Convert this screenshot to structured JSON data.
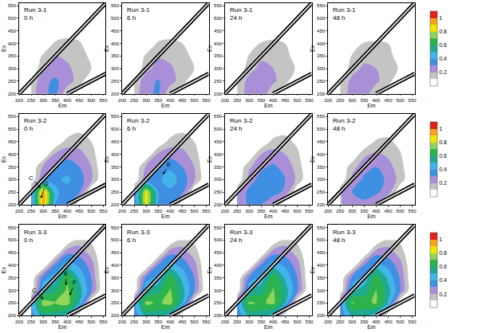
{
  "chart_data": {
    "type": "contour",
    "x_label": "Em",
    "y_label": "Ex",
    "xlim": [
      200,
      560
    ],
    "xticks": [
      200,
      250,
      300,
      350,
      400,
      450,
      500,
      550
    ],
    "ylim": [
      200,
      560
    ],
    "yticks": [
      200,
      250,
      300,
      350,
      400,
      450,
      500,
      550
    ],
    "x": [
      250,
      300,
      350,
      400,
      450,
      500,
      550
    ],
    "y": [
      200,
      250,
      300,
      350,
      400,
      450,
      500
    ],
    "scatter_lines": [
      {
        "x": [
          200,
          560
        ],
        "y": [
          200,
          560
        ]
      },
      {
        "x": [
          400,
          560
        ],
        "y": [
          200,
          280
        ]
      }
    ],
    "colorbar": {
      "zlim": [
        0,
        1.1
      ],
      "levels": {
        "start": 0.1,
        "end": 1.0,
        "size": 0.1
      },
      "ticks": [
        0.2,
        0.4,
        0.6,
        0.8,
        1
      ],
      "colors": [
        "#ffffff",
        "#c4c4c4",
        "#a98fd8",
        "#3f8fe3",
        "#43b4ea",
        "#1fa98d",
        "#2db34e",
        "#90d45a",
        "#f2e600",
        "#f7a21b",
        "#e3221b"
      ]
    },
    "panels": [
      {
        "title": "Run 3-1",
        "subtitle": "0 h",
        "z": [
          [
            0.15,
            0.28,
            0.33,
            0.12,
            0,
            0,
            0
          ],
          [
            0.12,
            0.27,
            0.32,
            0.25,
            0.15,
            0,
            0
          ],
          [
            0,
            0.18,
            0.25,
            0.22,
            0.16,
            0.1,
            0
          ],
          [
            0,
            0.12,
            0.2,
            0.18,
            0.14,
            0.08,
            0
          ],
          [
            0,
            0,
            0.12,
            0.13,
            0.11,
            0.05,
            0
          ],
          [
            0,
            0,
            0,
            0.06,
            0.06,
            0.03,
            0
          ],
          [
            0,
            0,
            0,
            0,
            0.03,
            0,
            0
          ]
        ],
        "annotations": []
      },
      {
        "title": "Run 3-1",
        "subtitle": "6 h",
        "z": [
          [
            0.15,
            0.27,
            0.32,
            0.12,
            0,
            0,
            0
          ],
          [
            0.12,
            0.26,
            0.31,
            0.24,
            0.15,
            0,
            0
          ],
          [
            0,
            0.17,
            0.24,
            0.22,
            0.15,
            0.1,
            0
          ],
          [
            0,
            0.12,
            0.19,
            0.17,
            0.13,
            0.08,
            0
          ],
          [
            0,
            0,
            0.12,
            0.12,
            0.1,
            0.05,
            0
          ],
          [
            0,
            0,
            0,
            0.06,
            0.06,
            0.03,
            0
          ],
          [
            0,
            0,
            0,
            0,
            0.03,
            0,
            0
          ]
        ],
        "annotations": []
      },
      {
        "title": "Run 3-1",
        "subtitle": "24 h",
        "z": [
          [
            0.14,
            0.24,
            0.27,
            0.11,
            0,
            0,
            0
          ],
          [
            0.11,
            0.24,
            0.27,
            0.22,
            0.14,
            0,
            0
          ],
          [
            0,
            0.16,
            0.23,
            0.2,
            0.14,
            0.09,
            0
          ],
          [
            0,
            0.11,
            0.18,
            0.16,
            0.12,
            0.07,
            0
          ],
          [
            0,
            0,
            0.11,
            0.12,
            0.1,
            0.05,
            0
          ],
          [
            0,
            0,
            0,
            0.05,
            0.05,
            0.03,
            0
          ],
          [
            0,
            0,
            0,
            0,
            0.03,
            0,
            0
          ]
        ],
        "annotations": []
      },
      {
        "title": "Run 3-1",
        "subtitle": "48 h",
        "z": [
          [
            0.14,
            0.24,
            0.26,
            0.11,
            0,
            0,
            0
          ],
          [
            0.11,
            0.23,
            0.26,
            0.22,
            0.14,
            0,
            0
          ],
          [
            0,
            0.16,
            0.22,
            0.2,
            0.14,
            0.09,
            0
          ],
          [
            0,
            0.11,
            0.17,
            0.16,
            0.12,
            0.07,
            0
          ],
          [
            0,
            0,
            0.11,
            0.11,
            0.1,
            0.05,
            0
          ],
          [
            0,
            0,
            0,
            0.05,
            0.05,
            0.03,
            0
          ],
          [
            0,
            0,
            0,
            0,
            0.03,
            0,
            0
          ]
        ],
        "annotations": []
      },
      {
        "title": "Run 3-2",
        "subtitle": "0 h",
        "z": [
          [
            0.3,
            0.95,
            0.4,
            0.3,
            0,
            0,
            0
          ],
          [
            0.3,
            0.95,
            0.42,
            0.36,
            0.32,
            0,
            0
          ],
          [
            0,
            0.32,
            0.38,
            0.42,
            0.35,
            0.22,
            0
          ],
          [
            0,
            0.22,
            0.3,
            0.36,
            0.3,
            0.2,
            0
          ],
          [
            0,
            0,
            0.22,
            0.26,
            0.24,
            0.15,
            0
          ],
          [
            0,
            0,
            0,
            0.15,
            0.15,
            0.1,
            0
          ],
          [
            0,
            0,
            0,
            0,
            0.08,
            0.05,
            0
          ]
        ],
        "annotations": [
          {
            "text": "C",
            "x": 290,
            "y": 265,
            "text_x": 250,
            "text_y": 305
          },
          {
            "text": "D",
            "x": 290,
            "y": 225,
            "text_x": 312,
            "text_y": 285
          }
        ]
      },
      {
        "title": "Run 3-2",
        "subtitle": "6 h",
        "z": [
          [
            0.28,
            0.85,
            0.38,
            0.3,
            0,
            0,
            0
          ],
          [
            0.28,
            0.85,
            0.4,
            0.38,
            0.34,
            0,
            0
          ],
          [
            0,
            0.3,
            0.38,
            0.45,
            0.36,
            0.22,
            0
          ],
          [
            0,
            0.22,
            0.32,
            0.38,
            0.3,
            0.2,
            0
          ],
          [
            0,
            0,
            0.22,
            0.26,
            0.24,
            0.15,
            0
          ],
          [
            0,
            0,
            0,
            0.15,
            0.15,
            0.1,
            0
          ],
          [
            0,
            0,
            0,
            0,
            0.08,
            0.05,
            0
          ]
        ],
        "annotations": [
          {
            "text": "E",
            "x": 370,
            "y": 320,
            "text_x": 395,
            "text_y": 360
          }
        ]
      },
      {
        "title": "Run 3-2",
        "subtitle": "24 h",
        "z": [
          [
            0.2,
            0.33,
            0.3,
            0.22,
            0,
            0,
            0
          ],
          [
            0.2,
            0.33,
            0.35,
            0.34,
            0.28,
            0,
            0
          ],
          [
            0,
            0.25,
            0.34,
            0.36,
            0.3,
            0.18,
            0
          ],
          [
            0,
            0.18,
            0.28,
            0.32,
            0.26,
            0.16,
            0
          ],
          [
            0,
            0,
            0.2,
            0.24,
            0.2,
            0.12,
            0
          ],
          [
            0,
            0,
            0,
            0.14,
            0.13,
            0.08,
            0
          ],
          [
            0,
            0,
            0,
            0,
            0.07,
            0.04,
            0
          ]
        ],
        "annotations": []
      },
      {
        "title": "Run 3-2",
        "subtitle": "48 h",
        "z": [
          [
            0.18,
            0.3,
            0.28,
            0.2,
            0,
            0,
            0
          ],
          [
            0.18,
            0.3,
            0.33,
            0.32,
            0.25,
            0,
            0
          ],
          [
            0,
            0.23,
            0.32,
            0.34,
            0.28,
            0.16,
            0
          ],
          [
            0,
            0.16,
            0.26,
            0.3,
            0.24,
            0.14,
            0
          ],
          [
            0,
            0,
            0.18,
            0.22,
            0.18,
            0.11,
            0
          ],
          [
            0,
            0,
            0,
            0.12,
            0.12,
            0.07,
            0
          ],
          [
            0,
            0,
            0,
            0,
            0.06,
            0.04,
            0
          ]
        ],
        "annotations": []
      },
      {
        "title": "Run 3-3",
        "subtitle": "0 h",
        "z": [
          [
            0.35,
            0.55,
            0.55,
            0.45,
            0,
            0,
            0
          ],
          [
            0.38,
            0.75,
            0.7,
            0.75,
            0.5,
            0,
            0
          ],
          [
            0,
            0.5,
            0.58,
            0.72,
            0.55,
            0.32,
            0
          ],
          [
            0,
            0.35,
            0.45,
            0.68,
            0.48,
            0.3,
            0
          ],
          [
            0,
            0,
            0.32,
            0.45,
            0.38,
            0.25,
            0
          ],
          [
            0,
            0,
            0,
            0.28,
            0.26,
            0.16,
            0
          ],
          [
            0,
            0,
            0,
            0,
            0.15,
            0.08,
            0
          ]
        ],
        "annotations": [
          {
            "text": "C",
            "x": 300,
            "y": 265,
            "text_x": 262,
            "text_y": 300
          },
          {
            "text": "E",
            "x": 395,
            "y": 320,
            "text_x": 395,
            "text_y": 365
          },
          {
            "text": "F",
            "x": 410,
            "y": 280,
            "text_x": 432,
            "text_y": 330
          }
        ]
      },
      {
        "title": "Run 3-3",
        "subtitle": "6 h",
        "z": [
          [
            0.34,
            0.54,
            0.54,
            0.44,
            0,
            0,
            0
          ],
          [
            0.36,
            0.73,
            0.68,
            0.74,
            0.5,
            0,
            0
          ],
          [
            0,
            0.5,
            0.57,
            0.71,
            0.54,
            0.31,
            0
          ],
          [
            0,
            0.34,
            0.44,
            0.66,
            0.47,
            0.3,
            0
          ],
          [
            0,
            0,
            0.31,
            0.44,
            0.37,
            0.24,
            0
          ],
          [
            0,
            0,
            0,
            0.27,
            0.25,
            0.15,
            0
          ],
          [
            0,
            0,
            0,
            0,
            0.14,
            0.08,
            0
          ]
        ],
        "annotations": []
      },
      {
        "title": "Run 3-3",
        "subtitle": "24 h",
        "z": [
          [
            0.33,
            0.53,
            0.54,
            0.44,
            0,
            0,
            0
          ],
          [
            0.35,
            0.72,
            0.68,
            0.73,
            0.5,
            0,
            0
          ],
          [
            0,
            0.49,
            0.56,
            0.71,
            0.55,
            0.32,
            0
          ],
          [
            0,
            0.33,
            0.44,
            0.67,
            0.48,
            0.3,
            0
          ],
          [
            0,
            0,
            0.31,
            0.45,
            0.38,
            0.25,
            0
          ],
          [
            0,
            0,
            0,
            0.27,
            0.26,
            0.16,
            0
          ],
          [
            0,
            0,
            0,
            0,
            0.15,
            0.08,
            0
          ]
        ],
        "annotations": []
      },
      {
        "title": "Run 3-3",
        "subtitle": "48 h",
        "z": [
          [
            0.32,
            0.52,
            0.53,
            0.43,
            0,
            0,
            0
          ],
          [
            0.34,
            0.71,
            0.66,
            0.72,
            0.49,
            0,
            0
          ],
          [
            0,
            0.48,
            0.55,
            0.7,
            0.54,
            0.31,
            0
          ],
          [
            0,
            0.33,
            0.43,
            0.66,
            0.47,
            0.29,
            0
          ],
          [
            0,
            0,
            0.3,
            0.44,
            0.37,
            0.24,
            0
          ],
          [
            0,
            0,
            0,
            0.26,
            0.25,
            0.15,
            0
          ],
          [
            0,
            0,
            0,
            0,
            0.14,
            0.08,
            0
          ]
        ],
        "annotations": []
      }
    ]
  }
}
